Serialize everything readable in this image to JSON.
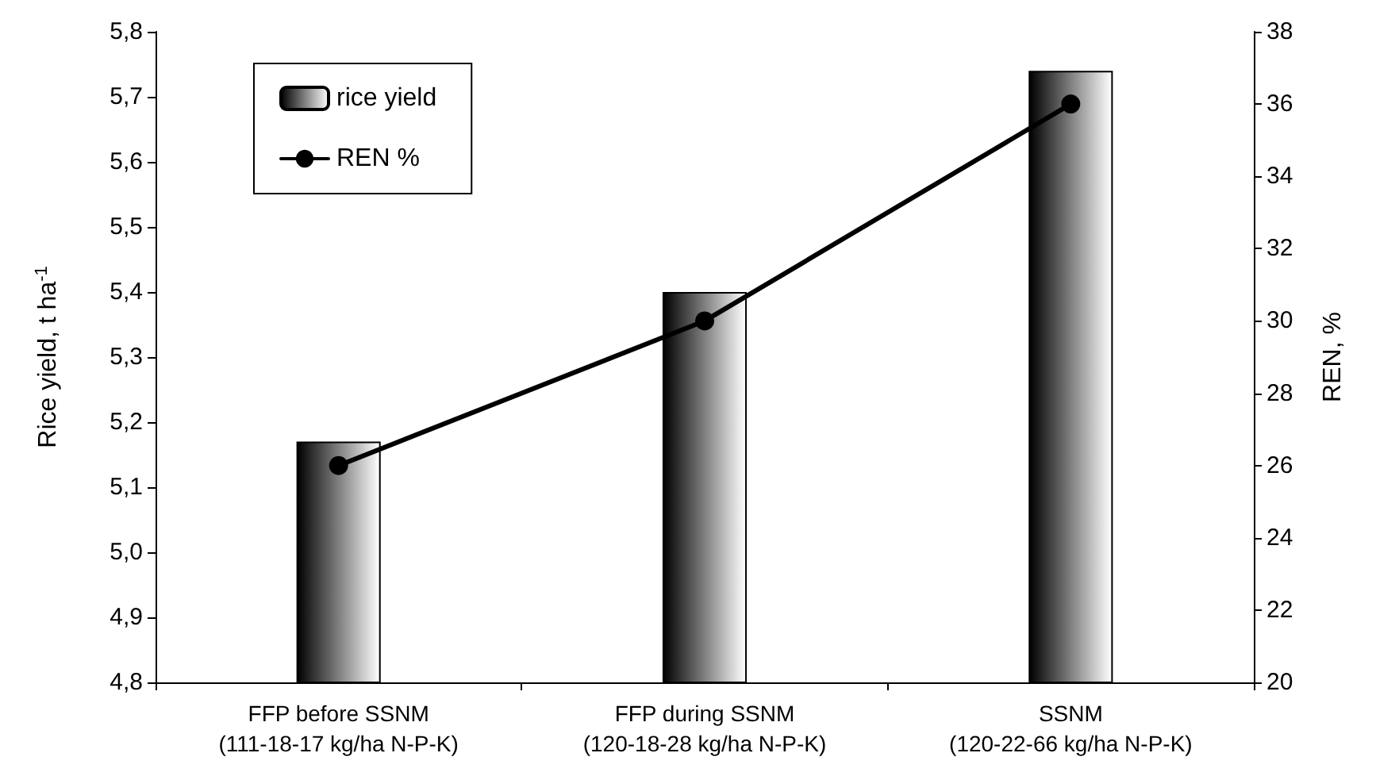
{
  "chart_data": {
    "type": "bar",
    "categories": [
      "FFP before SSNM\n(111-18-17 kg/ha N-P-K)",
      "FFP during SSNM\n(120-18-28 kg/ha N-P-K)",
      "SSNM\n(120-22-66 kg/ha N-P-K)"
    ],
    "series": [
      {
        "name": "rice yield",
        "color": "#000000",
        "values": [
          5.17,
          5.4,
          5.74
        ]
      },
      {
        "name": "REN %",
        "type": "line",
        "axis": "y2",
        "color": "#000000",
        "values": [
          26,
          30,
          36
        ]
      }
    ],
    "ylabel": "Rice yield, t ha$^{-1}$",
    "y2label": "REN, %",
    "ylim": [
      4.8,
      5.8
    ],
    "yticks": [
      {
        "value": 4.8,
        "label": "4,8"
      },
      {
        "value": 4.9,
        "label": "4,9"
      },
      {
        "value": 5.0,
        "label": "5,0"
      },
      {
        "value": 5.1,
        "label": "5,1"
      },
      {
        "value": 5.2,
        "label": "5,2"
      },
      {
        "value": 5.3,
        "label": "5,3"
      },
      {
        "value": 5.4,
        "label": "5,4"
      },
      {
        "value": 5.5,
        "label": "5,5"
      },
      {
        "value": 5.6,
        "label": "5,6"
      },
      {
        "value": 5.7,
        "label": "5,7"
      },
      {
        "value": 5.8,
        "label": "5,8"
      }
    ],
    "y2lim": [
      20,
      38
    ],
    "y2ticks": [
      20,
      22,
      24,
      26,
      28,
      30,
      32,
      34,
      36,
      38
    ],
    "legend": "top left",
    "grid": false,
    "marker": "circle",
    "line_style": "solid"
  }
}
